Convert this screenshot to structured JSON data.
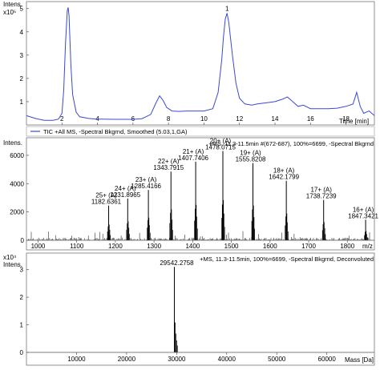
{
  "chart_data": [
    {
      "type": "line",
      "panel": "chromatogram",
      "ylabel": "Intens.",
      "y_scale_label": "x10⁵",
      "xlabel": "Time [min]",
      "xlim": [
        0,
        19.6
      ],
      "ylim": [
        0,
        5.3
      ],
      "x_ticks": [
        "2",
        "4",
        "6",
        "8",
        "10",
        "12",
        "14",
        "16",
        "18"
      ],
      "y_ticks": [
        "1",
        "2",
        "3",
        "4",
        "5"
      ],
      "peak_label": "1",
      "legend": "TIC +All MS, -Spectral Bkgrnd, Smoothed (5.03,1,GA)",
      "series": [
        {
          "name": "TIC +All MS, -Spectral Bkgrnd, Smoothed (5.03,1,GA)",
          "color": "#3b49d3",
          "x": [
            0,
            0.5,
            1.0,
            1.5,
            1.8,
            2.0,
            2.1,
            2.2,
            2.3,
            2.35,
            2.4,
            2.5,
            2.6,
            2.8,
            3.0,
            3.5,
            4.0,
            5.0,
            6.0,
            6.5,
            7.0,
            7.3,
            7.5,
            7.7,
            7.9,
            8.2,
            8.6,
            9.0,
            9.5,
            10.0,
            10.5,
            10.8,
            11.0,
            11.1,
            11.2,
            11.3,
            11.4,
            11.6,
            11.8,
            12.0,
            12.3,
            12.7,
            13.0,
            13.5,
            14.0,
            14.4,
            14.7,
            15.0,
            15.3,
            15.6,
            16.0,
            16.5,
            17.0,
            17.5,
            18.0,
            18.4,
            18.6,
            18.8,
            19.0,
            19.3,
            19.6
          ],
          "values": [
            0.4,
            0.28,
            0.2,
            0.2,
            0.25,
            0.5,
            1.5,
            3.5,
            4.9,
            5.05,
            4.7,
            2.6,
            1.3,
            0.55,
            0.35,
            0.28,
            0.25,
            0.24,
            0.24,
            0.27,
            0.45,
            0.95,
            1.25,
            1.05,
            0.75,
            0.6,
            0.58,
            0.6,
            0.6,
            0.6,
            0.7,
            1.4,
            2.8,
            3.8,
            4.55,
            4.8,
            4.4,
            3.0,
            1.8,
            1.15,
            0.9,
            0.85,
            0.9,
            0.95,
            1.0,
            1.1,
            1.2,
            1.0,
            0.8,
            0.85,
            0.7,
            0.7,
            0.7,
            0.72,
            0.8,
            0.9,
            1.4,
            0.8,
            0.5,
            0.6,
            0.4
          ]
        }
      ]
    },
    {
      "type": "bar",
      "panel": "ms-spectrum",
      "ylabel": "Intens.",
      "xlabel": "m/z",
      "header": "+MS, 11.3-11.5min #(672-687), 100%=6699, -Spectral Bkgrnd",
      "xlim": [
        970,
        1870
      ],
      "ylim": [
        0,
        6900
      ],
      "x_ticks": [
        "1000",
        "1100",
        "1200",
        "1300",
        "1400",
        "1500",
        "1600",
        "1700",
        "1800"
      ],
      "y_ticks": [
        "0",
        "2000",
        "4000",
        "6000"
      ],
      "peaks": [
        {
          "mz": 1182.6361,
          "intensity": 2450,
          "charge": "25+ (A)",
          "label": "1182.6361"
        },
        {
          "mz": 1231.8965,
          "intensity": 2950,
          "charge": "24+ (A)",
          "label": "1231.8965"
        },
        {
          "mz": 1285.4166,
          "intensity": 3550,
          "charge": "23+ (A)",
          "label": "1285.4166"
        },
        {
          "mz": 1343.7915,
          "intensity": 4850,
          "charge": "22+ (A)",
          "label": "1343.7915"
        },
        {
          "mz": 1407.7406,
          "intensity": 5550,
          "charge": "21+ (A)",
          "label": "1407.7406"
        },
        {
          "mz": 1478.0715,
          "intensity": 6300,
          "charge": "20+ (A)",
          "label": "1478.0715"
        },
        {
          "mz": 1555.8208,
          "intensity": 5450,
          "charge": "19+ (A)",
          "label": "1555.8208"
        },
        {
          "mz": 1642.1799,
          "intensity": 4200,
          "charge": "18+ (A)",
          "label": "1642.1799"
        },
        {
          "mz": 1738.7239,
          "intensity": 2850,
          "charge": "17+ (A)",
          "label": "1738.7239"
        },
        {
          "mz": 1847.3421,
          "intensity": 1450,
          "charge": "16+ (A)",
          "label": "1847.3421"
        }
      ],
      "color": "#000000"
    },
    {
      "type": "bar",
      "panel": "deconvoluted",
      "ylabel": "Intens.",
      "y_scale_label": "x10⁴",
      "xlabel": "Mass [Da]",
      "header": "+MS, 11.3-11.5min, 100%=6699, -Spectral Bkgrnd, Deconvoluted",
      "xlim": [
        0,
        69500
      ],
      "ylim": [
        0,
        3.6
      ],
      "x_ticks": [
        "10000",
        "20000",
        "30000",
        "40000",
        "50000",
        "60000"
      ],
      "y_ticks": [
        "0",
        "1",
        "2",
        "3"
      ],
      "peaks": [
        {
          "mass": 29542.2758,
          "intensity": 3.1,
          "label": "29542.2758"
        }
      ],
      "color": "#000000"
    }
  ]
}
